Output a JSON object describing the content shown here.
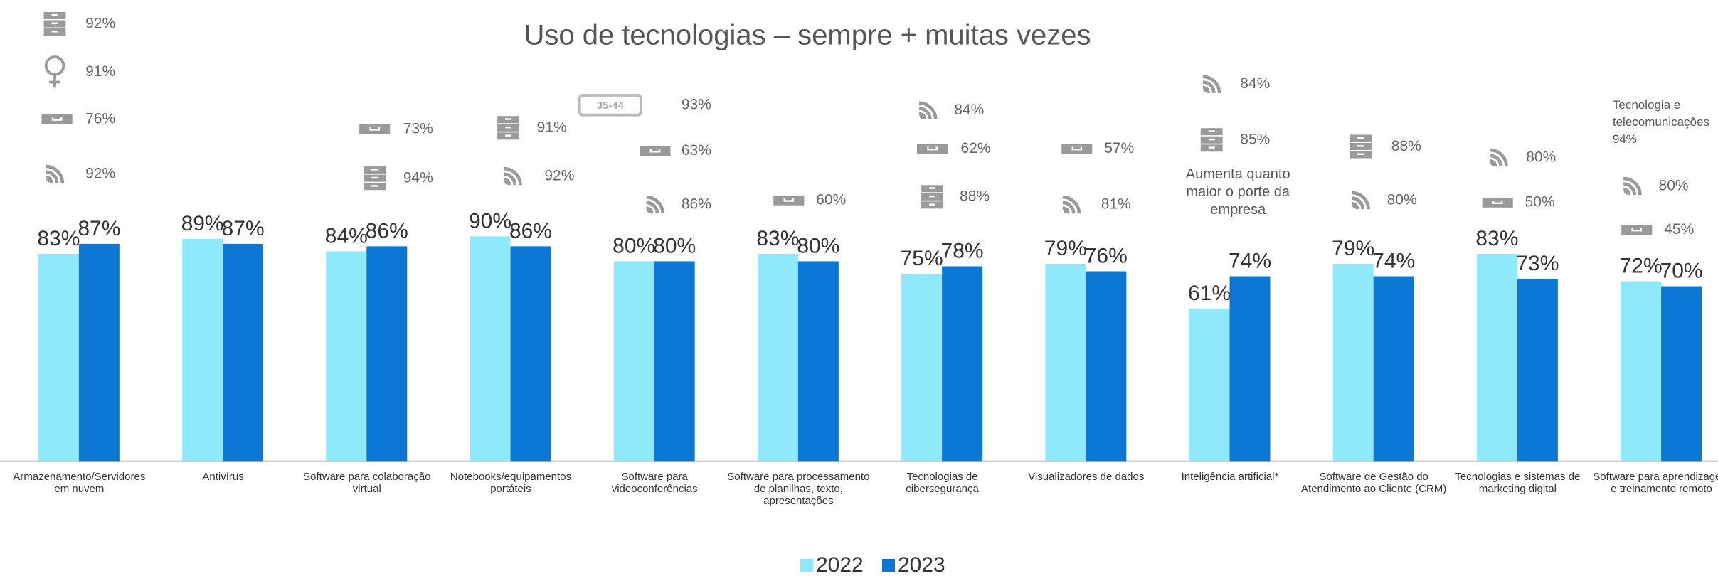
{
  "chart_data": {
    "type": "bar",
    "title": "Uso de tecnologias – sempre + muitas vezes",
    "categories": [
      "Armazenamento/Servidores em nuvem",
      "Antivírus",
      "Software para colaboração virtual",
      "Notebooks/equipamentos portáteis",
      "Software para videoconferências",
      "Software para processamento de planilhas, texto, apresentações",
      "Tecnologias de cibersegurança",
      "Visualizadores de dados",
      "Inteligência artificial*",
      "Software de Gestão do Atendimento ao Cliente (CRM)",
      "Tecnologias e sistemas de marketing digital",
      "Software para aprendizagem e treinamento remoto"
    ],
    "series": [
      {
        "name": "2022",
        "color": "#8eeafa",
        "values": [
          83,
          89,
          84,
          90,
          80,
          83,
          75,
          79,
          61,
          79,
          83,
          72
        ],
        "value_labels": [
          "83%",
          "89%",
          "84%",
          "90%",
          "80%",
          "83%",
          "75%",
          "79%",
          "61%",
          "79%",
          "83%",
          "72%"
        ]
      },
      {
        "name": "2023",
        "color": "#0a78d4",
        "values": [
          87,
          87,
          86,
          86,
          80,
          80,
          78,
          76,
          74,
          74,
          73,
          70
        ],
        "value_labels": [
          "87%",
          "87%",
          "86%",
          "86%",
          "80%",
          "80%",
          "78%",
          "76%",
          "74%",
          "74%",
          "73%",
          "70%"
        ]
      }
    ],
    "ylim": [
      0,
      100
    ],
    "legend": "bottom",
    "annotations": [
      [
        "92%",
        "91%",
        "76%",
        "92%"
      ],
      [],
      [
        "73%",
        "94%"
      ],
      [
        "91%",
        "92%"
      ],
      [
        "93%",
        "63%",
        "86%"
      ],
      [
        "60%"
      ],
      [
        "84%",
        "62%",
        "88%"
      ],
      [
        "57%",
        "81%"
      ],
      [
        "84%",
        "85%"
      ],
      [
        "88%",
        "80%"
      ],
      [
        "80%",
        "50%"
      ],
      [
        "80%",
        "45%"
      ]
    ],
    "age_badge": "35-44",
    "notes": [
      "Aumenta quanto maior o porte da empresa",
      "Tecnologia e telecomunicações 94%"
    ]
  }
}
